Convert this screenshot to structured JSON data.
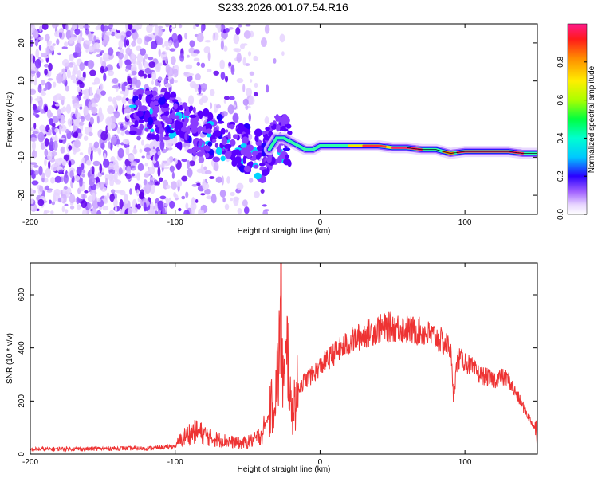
{
  "title": "S233.2026.001.07.54.R16",
  "colors": {
    "snr_line": "#ee3333",
    "spectrogram_low": "#cfa6ff",
    "spectrogram_mid": "#6a00ff",
    "spectrogram_hot": "#ff3377"
  },
  "chart_data": [
    {
      "type": "heatmap",
      "name": "spectrogram",
      "xlabel": "Height of straight line (km)",
      "ylabel": "Frequency (Hz)",
      "xlim": [
        -200,
        150
      ],
      "ylim": [
        -25,
        25
      ],
      "xticks": [
        -200,
        -100,
        0,
        100
      ],
      "xtick_labels": [
        "-200",
        "-100",
        "0",
        "100"
      ],
      "yticks": [
        -20,
        -10,
        0,
        10,
        20
      ],
      "ytick_labels": [
        "-20",
        "-10",
        "0",
        "10",
        "20"
      ],
      "ridge": {
        "x": [
          -100,
          -90,
          -80,
          -70,
          -60,
          -50,
          -40,
          -35,
          -30,
          -25,
          -20,
          -15,
          -10,
          -5,
          0,
          5,
          10,
          20,
          30,
          40,
          50,
          60,
          70,
          80,
          90,
          100,
          110,
          120,
          130,
          140,
          150
        ],
        "y": [
          -1,
          -3,
          -4,
          -5,
          -6,
          -8,
          -10,
          -8,
          -5,
          -5,
          -6,
          -7,
          -8,
          -8,
          -7,
          -7,
          -7,
          -7,
          -7,
          -7,
          -7.5,
          -7.5,
          -8,
          -8,
          -9,
          -8.5,
          -8.5,
          -8.5,
          -8.5,
          -9,
          -9
        ]
      },
      "colorbar": {
        "label": "Normalized spectral amplitude",
        "range": [
          0,
          1
        ],
        "ticks": [
          0.0,
          0.2,
          0.4,
          0.6,
          0.8
        ],
        "tick_labels": [
          "0.0",
          "0.2",
          "0.4",
          "0.6",
          "0.8"
        ]
      }
    },
    {
      "type": "line",
      "name": "snr",
      "xlabel": "Height of straight line (km)",
      "ylabel": "SNR (10 * v/v)",
      "xlim": [
        -200,
        150
      ],
      "ylim": [
        0,
        720
      ],
      "xticks": [
        -200,
        -100,
        0,
        100
      ],
      "xtick_labels": [
        "-200",
        "-100",
        "0",
        "100"
      ],
      "yticks": [
        0,
        200,
        400,
        600
      ],
      "ytick_labels": [
        "0",
        "200",
        "400",
        "600"
      ],
      "series": [
        {
          "name": "SNR",
          "x": [
            -200,
            -180,
            -160,
            -140,
            -120,
            -110,
            -100,
            -95,
            -90,
            -85,
            -80,
            -75,
            -70,
            -65,
            -60,
            -55,
            -50,
            -45,
            -40,
            -35,
            -30,
            -28,
            -27,
            -26,
            -25,
            -22,
            -20,
            -15,
            -10,
            -5,
            0,
            10,
            20,
            30,
            40,
            50,
            60,
            70,
            80,
            90,
            92,
            95,
            100,
            110,
            120,
            125,
            130,
            140,
            150
          ],
          "values": [
            18,
            20,
            20,
            22,
            22,
            25,
            30,
            60,
            80,
            85,
            75,
            60,
            55,
            50,
            45,
            40,
            45,
            55,
            80,
            150,
            250,
            400,
            720,
            350,
            250,
            400,
            150,
            250,
            280,
            300,
            330,
            380,
            420,
            450,
            470,
            480,
            470,
            460,
            440,
            400,
            220,
            360,
            350,
            300,
            280,
            290,
            280,
            180,
            80
          ]
        }
      ]
    }
  ]
}
